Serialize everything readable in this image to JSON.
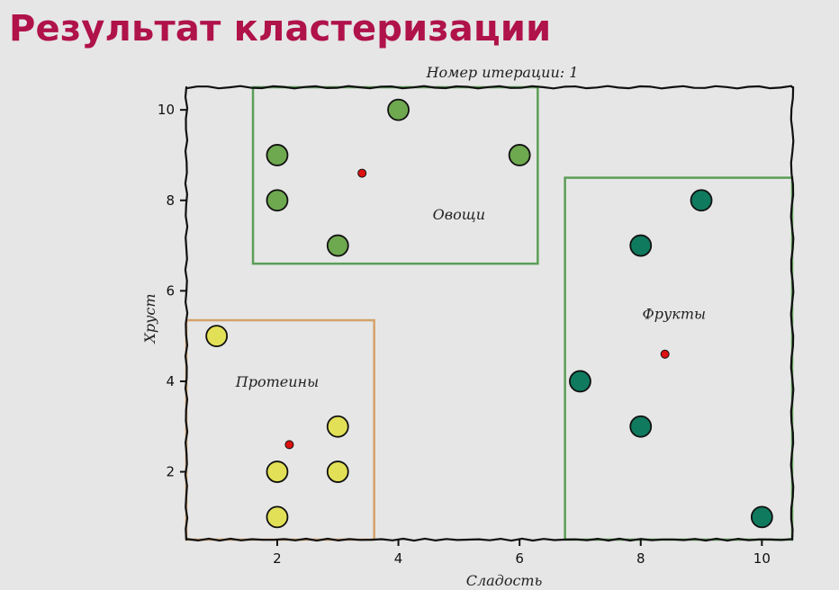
{
  "slide": {
    "title": "Результат кластеризации"
  },
  "chart_data": {
    "type": "scatter",
    "title": "Номер итерации: 1",
    "xlabel": "Сладость",
    "ylabel": "Хруст",
    "xlim": [
      0.5,
      10.5
    ],
    "ylim": [
      0.5,
      10.5
    ],
    "xticks": [
      2,
      4,
      6,
      8,
      10
    ],
    "yticks": [
      2,
      4,
      6,
      8,
      10
    ],
    "grid": false,
    "series": [
      {
        "name": "Овощи",
        "color": "#6ea84f",
        "points": [
          [
            4,
            10
          ],
          [
            2,
            9
          ],
          [
            6,
            9
          ],
          [
            2,
            8
          ],
          [
            3,
            7
          ]
        ],
        "centroid": [
          3.4,
          8.6
        ],
        "box": [
          1.6,
          6.6,
          6.3,
          10.5
        ]
      },
      {
        "name": "Протеины",
        "color": "#e2e056",
        "box_color": "#d4a26a",
        "points": [
          [
            1,
            5
          ],
          [
            3,
            3
          ],
          [
            2,
            2
          ],
          [
            3,
            2
          ],
          [
            2,
            1
          ]
        ],
        "centroid": [
          2.2,
          2.6
        ],
        "box": [
          0.5,
          0.5,
          3.6,
          5.35
        ]
      },
      {
        "name": "Фрукты",
        "color": "#0f7a5e",
        "points": [
          [
            9,
            8
          ],
          [
            8,
            7
          ],
          [
            7,
            4
          ],
          [
            8,
            3
          ],
          [
            10,
            1
          ]
        ],
        "centroid": [
          8.4,
          4.6
        ],
        "box": [
          6.75,
          0.5,
          10.5,
          8.5
        ]
      }
    ],
    "cluster_labels": [
      {
        "text": "Овощи",
        "x": 5.0,
        "y": 7.7
      },
      {
        "text": "Протеины",
        "x": 2.0,
        "y": 4.0
      },
      {
        "text": "Фрукты",
        "x": 8.55,
        "y": 5.5
      }
    ],
    "box_border_color": "#5c9e56",
    "centroid_color": "#dd1111"
  }
}
